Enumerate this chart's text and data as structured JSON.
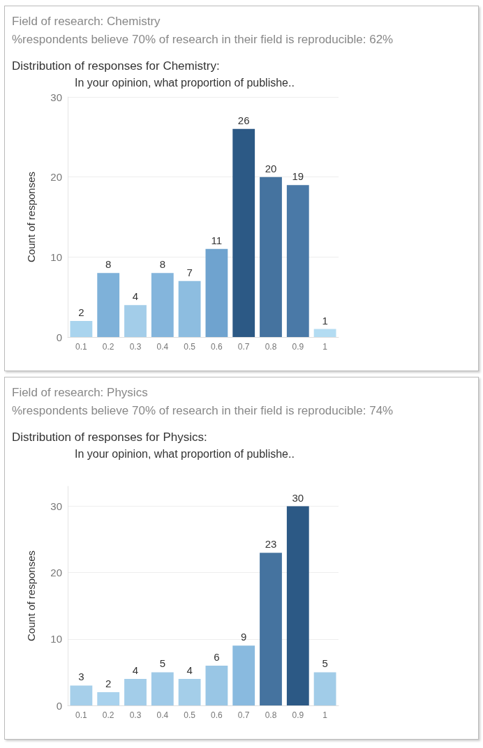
{
  "chart_data": [
    {
      "type": "bar",
      "title": "Field of research: Chemistry",
      "subtitle": "%respondents believe 70% of research in their field is reproducible: 62%",
      "annotations": [
        "Distribution of responses for Chemistry:",
        "In your opinion, what proportion of publishe.."
      ],
      "ylabel": "Count of responses",
      "categories": [
        "0.1",
        "0.2",
        "0.3",
        "0.4",
        "0.5",
        "0.6",
        "0.7",
        "0.8",
        "0.9",
        "1"
      ],
      "values": [
        2,
        8,
        4,
        8,
        7,
        11,
        26,
        20,
        19,
        1
      ],
      "colors": [
        "#a9d4ee",
        "#7eb1d9",
        "#a3cde9",
        "#84b5dc",
        "#8dbde0",
        "#6fa3cf",
        "#2c5985",
        "#45739f",
        "#4a79a7",
        "#b3dcf2"
      ],
      "ylim": [
        0,
        30
      ],
      "yticks": [
        0,
        10,
        20,
        30
      ],
      "grid": "y",
      "data_labels": true
    },
    {
      "type": "bar",
      "title": "Field of research: Physics",
      "subtitle": "%respondents believe 70% of research in their field is reproducible: 74%",
      "annotations": [
        "Distribution of responses for Physics:",
        "In your opinion, what proportion of publishe.."
      ],
      "ylabel": "Count of responses",
      "categories": [
        "0.1",
        "0.2",
        "0.3",
        "0.4",
        "0.5",
        "0.6",
        "0.7",
        "0.8",
        "0.9",
        "1"
      ],
      "values": [
        3,
        2,
        4,
        5,
        4,
        6,
        9,
        23,
        30,
        5
      ],
      "colors": [
        "#a6cfea",
        "#a9d2ed",
        "#a3cde9",
        "#9fcae8",
        "#a4cee9",
        "#99c6e5",
        "#89badf",
        "#45739f",
        "#2c5985",
        "#a1cce8"
      ],
      "ylim": [
        0,
        33
      ],
      "yticks": [
        0,
        10,
        20,
        30
      ],
      "grid": "y",
      "data_labels": true
    }
  ]
}
